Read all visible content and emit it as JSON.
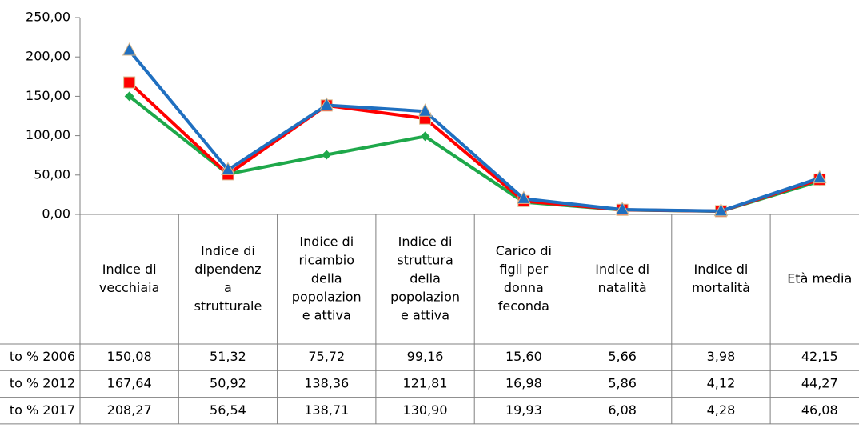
{
  "chart_data": {
    "type": "line",
    "categories": [
      [
        "Indice di",
        "vecchiaia"
      ],
      [
        "Indice di",
        "dipendenz",
        "a",
        "strutturale"
      ],
      [
        "Indice di",
        "ricambio",
        "della",
        "popolazion",
        "e attiva"
      ],
      [
        "Indice di",
        "struttura",
        "della",
        "popolazion",
        "e attiva"
      ],
      [
        "Carico di",
        "figli per",
        "donna",
        "feconda"
      ],
      [
        "Indice di",
        "natalità"
      ],
      [
        "Indice di",
        "mortalità"
      ],
      [
        "Età media"
      ]
    ],
    "series": [
      {
        "name": "to % 2006",
        "color": "#1ea84a",
        "marker": "diamond",
        "values": [
          150.08,
          51.32,
          75.72,
          99.16,
          15.6,
          5.66,
          3.98,
          42.15
        ],
        "value_labels": [
          "150,08",
          "51,32",
          "75,72",
          "99,16",
          "15,60",
          "5,66",
          "3,98",
          "42,15"
        ]
      },
      {
        "name": "to % 2012",
        "color": "#ff0000",
        "marker": "square",
        "values": [
          167.64,
          50.92,
          138.36,
          121.81,
          16.98,
          5.86,
          4.12,
          44.27
        ],
        "value_labels": [
          "167,64",
          "50,92",
          "138,36",
          "121,81",
          "16,98",
          "5,86",
          "4,12",
          "44,27"
        ]
      },
      {
        "name": "to % 2017",
        "color": "#1f6fc0",
        "marker": "triangle",
        "values": [
          208.27,
          56.54,
          138.71,
          130.9,
          19.93,
          6.08,
          4.28,
          46.08
        ],
        "value_labels": [
          "208,27",
          "56,54",
          "138,71",
          "130,90",
          "19,93",
          "6,08",
          "4,28",
          "46,08"
        ]
      }
    ],
    "ylim": [
      0,
      250
    ],
    "yticks": [
      {
        "value": 0,
        "label": "0,00"
      },
      {
        "value": 50,
        "label": "50,00"
      },
      {
        "value": 100,
        "label": "100,00"
      },
      {
        "value": 150,
        "label": "150,00"
      },
      {
        "value": 200,
        "label": "200,00"
      },
      {
        "value": 250,
        "label": "250,00"
      }
    ]
  }
}
